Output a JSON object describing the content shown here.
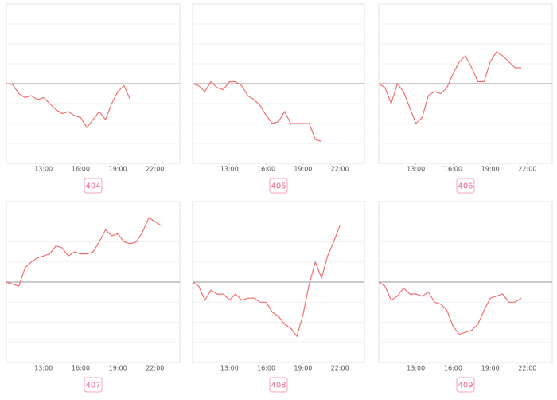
{
  "chart_data": [
    {
      "type": "line",
      "title": "404",
      "color": "#f07070",
      "xlim": [
        10,
        24
      ],
      "ylim": [
        -4,
        4
      ],
      "yticks": [
        -3,
        -2,
        -1,
        0,
        1,
        2,
        3
      ],
      "xticks": [
        {
          "value": 13,
          "label": "13:00"
        },
        {
          "value": 16,
          "label": "16:00"
        },
        {
          "value": 19,
          "label": "19:00"
        },
        {
          "value": 22,
          "label": "22:00"
        }
      ],
      "x": [
        10,
        10.5,
        11,
        11.5,
        12,
        12.5,
        13,
        13.5,
        14,
        14.5,
        15,
        15.5,
        16,
        16.5,
        17,
        17.5,
        18,
        18.5,
        19,
        19.5,
        20
      ],
      "values": [
        0,
        -0.04,
        -0.5,
        -0.7,
        -0.6,
        -0.8,
        -0.7,
        -1.0,
        -1.3,
        -1.5,
        -1.4,
        -1.6,
        -1.7,
        -2.2,
        -1.8,
        -1.4,
        -1.8,
        -1.0,
        -0.4,
        -0.1,
        -0.8
      ]
    },
    {
      "type": "line",
      "title": "405",
      "color": "#f07070",
      "xlim": [
        10,
        24
      ],
      "ylim": [
        -4,
        4
      ],
      "yticks": [
        -3,
        -2,
        -1,
        0,
        1,
        2,
        3
      ],
      "xticks": [
        {
          "value": 13,
          "label": "13:00"
        },
        {
          "value": 16,
          "label": "16:00"
        },
        {
          "value": 19,
          "label": "19:00"
        },
        {
          "value": 22,
          "label": "22:00"
        }
      ],
      "x": [
        10,
        10.5,
        11,
        11.5,
        12,
        12.5,
        13,
        13.5,
        14,
        14.5,
        15,
        15.5,
        16,
        16.5,
        17,
        17.5,
        18,
        18.5,
        19,
        19.5,
        20,
        20.5
      ],
      "values": [
        0,
        -0.1,
        -0.4,
        0.1,
        -0.2,
        -0.3,
        0.1,
        0.1,
        -0.1,
        -0.6,
        -0.8,
        -1.1,
        -1.6,
        -2.0,
        -1.9,
        -1.4,
        -2.0,
        -2.0,
        -2.0,
        -2.0,
        -2.8,
        -2.9
      ]
    },
    {
      "type": "line",
      "title": "406",
      "color": "#f07070",
      "xlim": [
        10,
        24
      ],
      "ylim": [
        -4,
        4
      ],
      "yticks": [
        -3,
        -2,
        -1,
        0,
        1,
        2,
        3
      ],
      "xticks": [
        {
          "value": 13,
          "label": "13:00"
        },
        {
          "value": 16,
          "label": "16:00"
        },
        {
          "value": 19,
          "label": "19:00"
        },
        {
          "value": 22,
          "label": "22:00"
        }
      ],
      "x": [
        10,
        10.5,
        11,
        11.5,
        12,
        12.5,
        13,
        13.5,
        14,
        14.5,
        15,
        15.5,
        16,
        16.5,
        17,
        17.5,
        18,
        18.5,
        19,
        19.5,
        20,
        20.5,
        21,
        21.5
      ],
      "values": [
        0,
        -0.2,
        -1.0,
        0,
        -0.4,
        -1.2,
        -2.0,
        -1.7,
        -0.6,
        -0.4,
        -0.5,
        -0.2,
        0.5,
        1.1,
        1.4,
        0.8,
        0.1,
        0.1,
        1.1,
        1.6,
        1.4,
        1.1,
        0.8,
        0.8
      ]
    },
    {
      "type": "line",
      "title": "407",
      "color": "#f07070",
      "xlim": [
        10,
        24
      ],
      "ylim": [
        -4,
        4
      ],
      "yticks": [
        -3,
        -2,
        -1,
        0,
        1,
        2,
        3
      ],
      "xticks": [
        {
          "value": 13,
          "label": "13:00"
        },
        {
          "value": 16,
          "label": "16:00"
        },
        {
          "value": 19,
          "label": "19:00"
        },
        {
          "value": 22,
          "label": "22:00"
        }
      ],
      "x": [
        10,
        10.5,
        11,
        11.5,
        12,
        12.5,
        13,
        13.5,
        14,
        14.5,
        15,
        15.5,
        16,
        16.5,
        17,
        17.5,
        18,
        18.5,
        19,
        19.5,
        20,
        20.5,
        21,
        21.5,
        22,
        22.5
      ],
      "values": [
        0,
        -0.1,
        -0.2,
        0.7,
        1.0,
        1.2,
        1.3,
        1.4,
        1.8,
        1.7,
        1.3,
        1.5,
        1.4,
        1.4,
        1.5,
        2.0,
        2.6,
        2.3,
        2.4,
        2.0,
        1.9,
        2.0,
        2.5,
        3.2,
        3.0,
        2.8
      ]
    },
    {
      "type": "line",
      "title": "408",
      "color": "#f07070",
      "xlim": [
        10,
        24
      ],
      "ylim": [
        -4,
        4
      ],
      "yticks": [
        -3,
        -2,
        -1,
        0,
        1,
        2,
        3
      ],
      "xticks": [
        {
          "value": 13,
          "label": "13:00"
        },
        {
          "value": 16,
          "label": "16:00"
        },
        {
          "value": 19,
          "label": "19:00"
        },
        {
          "value": 22,
          "label": "22:00"
        }
      ],
      "x": [
        10,
        10.5,
        11,
        11.5,
        12,
        12.5,
        13,
        13.5,
        14,
        14.5,
        15,
        15.5,
        16,
        16.5,
        17,
        17.5,
        18,
        18.5,
        19,
        19.5,
        20,
        20.5,
        21,
        21.5,
        22
      ],
      "values": [
        0,
        -0.2,
        -0.9,
        -0.4,
        -0.6,
        -0.6,
        -0.9,
        -0.6,
        -0.9,
        -0.8,
        -0.8,
        -1.0,
        -1.0,
        -1.5,
        -1.7,
        -2.1,
        -2.3,
        -2.7,
        -1.6,
        -0.1,
        1.0,
        0.2,
        1.3,
        2.0,
        2.8
      ]
    },
    {
      "type": "line",
      "title": "409",
      "color": "#f07070",
      "xlim": [
        10,
        24
      ],
      "ylim": [
        -4,
        4
      ],
      "yticks": [
        -3,
        -2,
        -1,
        0,
        1,
        2,
        3
      ],
      "xticks": [
        {
          "value": 13,
          "label": "13:00"
        },
        {
          "value": 16,
          "label": "16:00"
        },
        {
          "value": 19,
          "label": "19:00"
        },
        {
          "value": 22,
          "label": "22:00"
        }
      ],
      "x": [
        10,
        10.5,
        11,
        11.5,
        12,
        12.5,
        13,
        13.5,
        14,
        14.5,
        15,
        15.5,
        16,
        16.5,
        17,
        17.5,
        18,
        18.5,
        19,
        19.5,
        20,
        20.5,
        21,
        21.5
      ],
      "values": [
        0,
        -0.2,
        -0.9,
        -0.7,
        -0.3,
        -0.6,
        -0.6,
        -0.7,
        -0.5,
        -1.0,
        -1.1,
        -1.4,
        -2.2,
        -2.6,
        -2.5,
        -2.4,
        -2.1,
        -1.4,
        -0.8,
        -0.7,
        -0.6,
        -1.0,
        -1.0,
        -0.8
      ]
    }
  ]
}
